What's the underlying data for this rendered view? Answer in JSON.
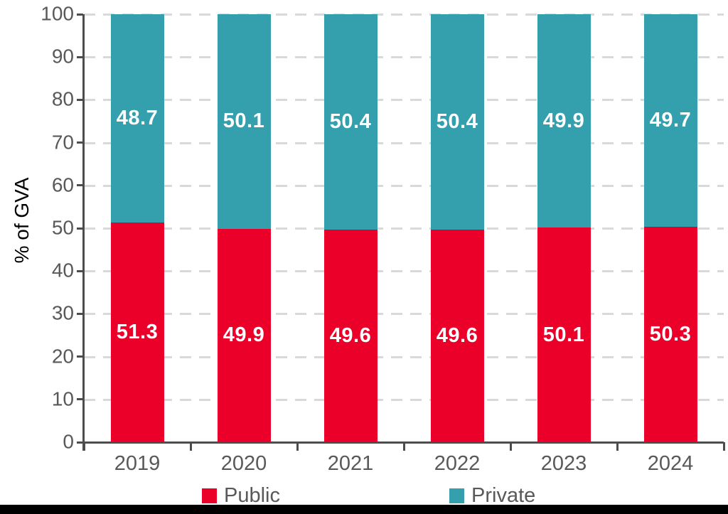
{
  "chart_data": {
    "type": "bar",
    "stacked": true,
    "title": "",
    "ylabel": "% of GVA",
    "xlabel": "",
    "categories": [
      "2019",
      "2020",
      "2021",
      "2022",
      "2023",
      "2024"
    ],
    "series": [
      {
        "name": "Public",
        "color": "#ea0029",
        "values": [
          51.3,
          49.9,
          49.6,
          49.6,
          50.1,
          50.3
        ]
      },
      {
        "name": "Private",
        "color": "#35a0ad",
        "values": [
          48.7,
          50.1,
          50.4,
          50.4,
          49.9,
          49.7
        ]
      }
    ],
    "ylim": [
      0,
      100
    ],
    "yticks": [
      0,
      10,
      20,
      30,
      40,
      50,
      60,
      70,
      80,
      90,
      100
    ],
    "grid": "horizontal-dashed",
    "legend_position": "bottom",
    "value_label_decimals": 1
  },
  "colors": {
    "axis": "#4d4d4d",
    "tick_text": "#595959",
    "gridline": "#d9d9d9",
    "value_label_text": "#ffffff",
    "bottom_bar": "#000000",
    "background": "#ffffff"
  }
}
